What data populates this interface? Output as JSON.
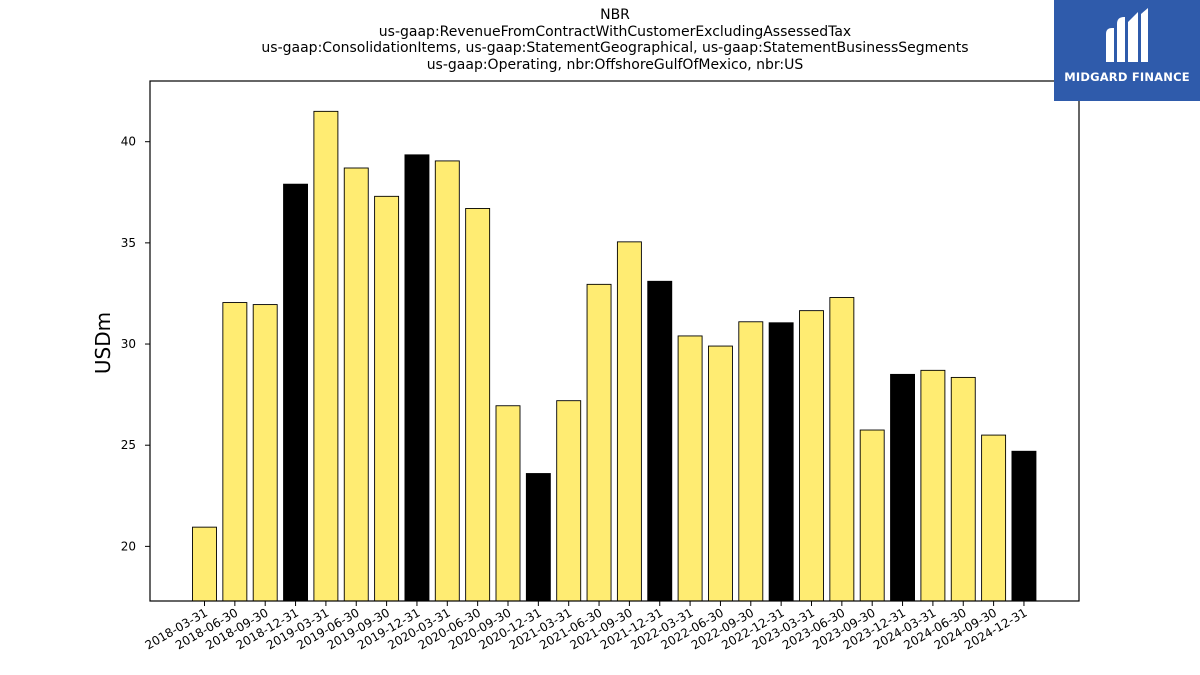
{
  "title_lines": [
    "NBR",
    "us-gaap:RevenueFromContractWithCustomerExcludingAssessedTax",
    "us-gaap:ConsolidationItems, us-gaap:StatementGeographical, us-gaap:StatementBusinessSegments",
    "us-gaap:Operating, nbr:OffshoreGulfOfMexico, nbr:US"
  ],
  "logo": {
    "text": "MIDGARD FINANCE",
    "bg_color": "#2f5bab"
  },
  "chart_data": {
    "type": "bar",
    "title": "NBR",
    "xlabel": "",
    "ylabel": "USDm",
    "ylim": [
      17.3,
      43.0
    ],
    "yticks": [
      20,
      25,
      30,
      35,
      40
    ],
    "grid": false,
    "colors": {
      "quarter": "#ffec72",
      "year_end": "#000000",
      "edge": "#000000"
    },
    "categories": [
      "2018-03-31",
      "2018-06-30",
      "2018-09-30",
      "2018-12-31",
      "2019-03-31",
      "2019-06-30",
      "2019-09-30",
      "2019-12-31",
      "2020-03-31",
      "2020-06-30",
      "2020-09-30",
      "2020-12-31",
      "2021-03-31",
      "2021-06-30",
      "2021-09-30",
      "2021-12-31",
      "2022-03-31",
      "2022-06-30",
      "2022-09-30",
      "2022-12-31",
      "2023-03-31",
      "2023-06-30",
      "2023-09-30",
      "2023-12-31",
      "2024-03-31",
      "2024-06-30",
      "2024-09-30",
      "2024-12-31"
    ],
    "values": [
      20.95,
      32.05,
      31.95,
      37.9,
      41.5,
      38.7,
      37.3,
      39.35,
      39.05,
      36.7,
      26.95,
      23.6,
      27.2,
      32.95,
      35.05,
      33.1,
      30.4,
      29.9,
      31.1,
      31.05,
      31.65,
      32.3,
      25.75,
      28.5,
      28.7,
      28.35,
      25.5,
      24.7
    ],
    "highlight": [
      false,
      false,
      false,
      true,
      false,
      false,
      false,
      true,
      false,
      false,
      false,
      true,
      false,
      false,
      false,
      true,
      false,
      false,
      false,
      true,
      false,
      false,
      false,
      true,
      false,
      false,
      false,
      true
    ]
  }
}
